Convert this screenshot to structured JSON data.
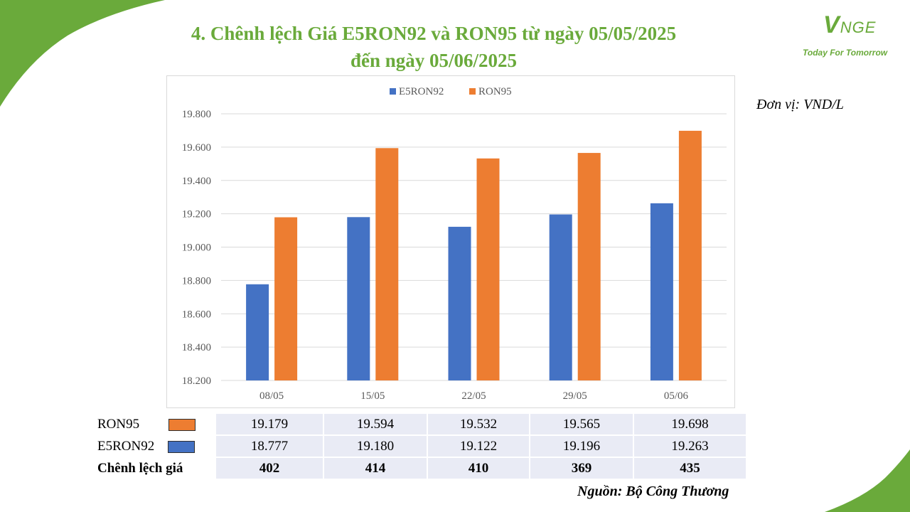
{
  "slide": {
    "title_line1": "4. Chênh lệch Giá E5RON92 và RON95 từ ngày 05/05/2025",
    "title_line2": "đến ngày 05/06/2025",
    "unit": "Đơn vị: VND/L",
    "source": "Nguồn: Bộ Công Thương"
  },
  "logo": {
    "mark_v": "V",
    "mark_rest": "NGE",
    "tagline": "Today For Tomorrow"
  },
  "colors": {
    "accent_green": "#6aaa3b",
    "e5ron92": "#4472c4",
    "ron95": "#ed7d31",
    "table_fill": "#e9ebf5"
  },
  "chart_data": {
    "type": "bar",
    "categories": [
      "08/05",
      "15/05",
      "22/05",
      "29/05",
      "05/06"
    ],
    "series": [
      {
        "name": "E5RON92",
        "values": [
          18777,
          19180,
          19122,
          19196,
          19263
        ]
      },
      {
        "name": "RON95",
        "values": [
          19179,
          19594,
          19532,
          19565,
          19698
        ]
      }
    ],
    "ylim": [
      18200,
      19800
    ],
    "yticks": [
      "18.200",
      "18.400",
      "18.600",
      "18.800",
      "19.000",
      "19.200",
      "19.400",
      "19.600",
      "19.800"
    ],
    "ytick_values": [
      18200,
      18400,
      18600,
      18800,
      19000,
      19200,
      19400,
      19600,
      19800
    ],
    "grid": true,
    "legend_position": "top-center"
  },
  "table": {
    "rows": [
      {
        "label": "RON95",
        "swatch": "ron95",
        "values": [
          "19.179",
          "19.594",
          "19.532",
          "19.565",
          "19.698"
        ]
      },
      {
        "label": "E5RON92",
        "swatch": "e5ron92",
        "values": [
          "18.777",
          "19.180",
          "19.122",
          "19.196",
          "19.263"
        ]
      },
      {
        "label": "Chênh lệch giá",
        "values": [
          "402",
          "414",
          "410",
          "369",
          "435"
        ]
      }
    ]
  }
}
